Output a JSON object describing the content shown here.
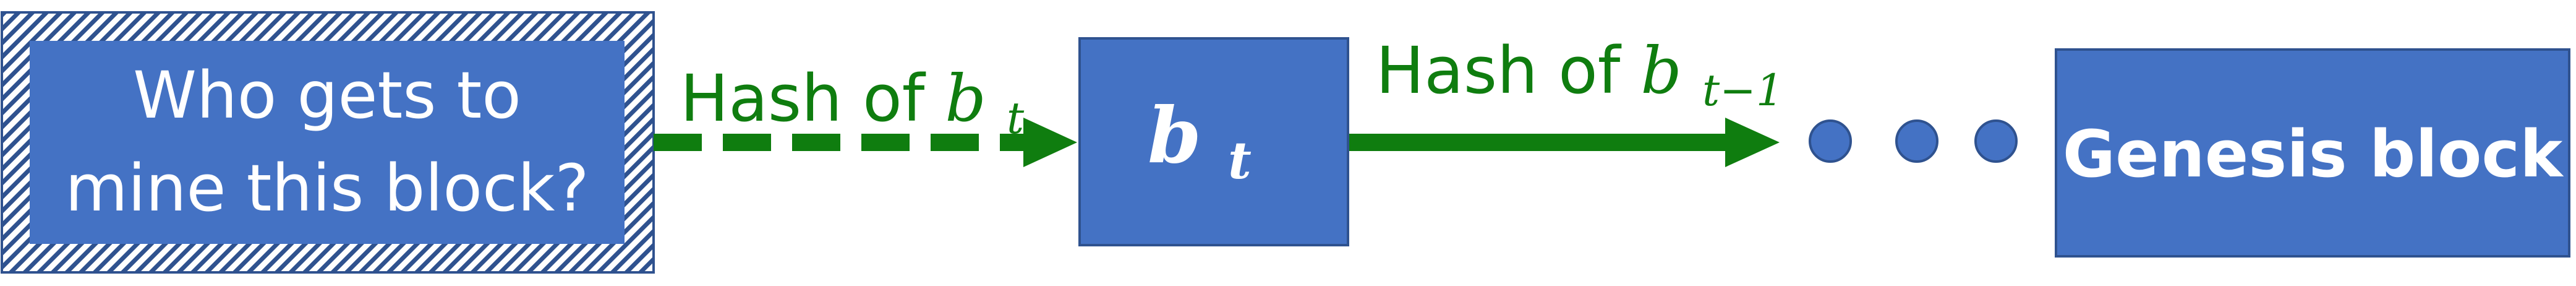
{
  "diagram": {
    "pending_block": {
      "line1": "Who gets to",
      "line2": "mine this block?"
    },
    "edge_pending": {
      "text": "Hash of ",
      "var": "b",
      "sub": "t"
    },
    "block_bt": {
      "var": "b",
      "sub": "t"
    },
    "edge_bt": {
      "text": "Hash of ",
      "var": "b",
      "sub": "t−1"
    },
    "genesis_block": {
      "label": "Genesis block"
    }
  },
  "colors": {
    "block_fill": "#4472c4",
    "block_border": "#2f528f",
    "arrow": "#0f7d0f"
  }
}
